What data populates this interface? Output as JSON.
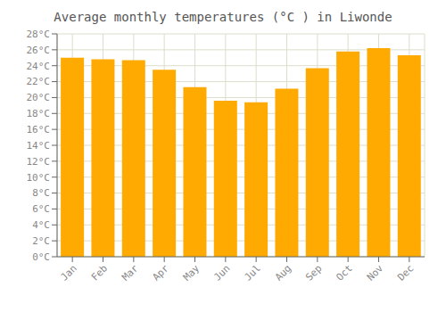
{
  "chart_data": {
    "type": "bar",
    "title": "Average monthly temperatures (°C ) in Liwonde",
    "categories": [
      "Jan",
      "Feb",
      "Mar",
      "Apr",
      "May",
      "Jun",
      "Jul",
      "Aug",
      "Sep",
      "Oct",
      "Nov",
      "Dec"
    ],
    "values": [
      25.0,
      24.8,
      24.7,
      23.5,
      21.3,
      19.6,
      19.4,
      21.1,
      23.7,
      25.8,
      26.2,
      25.3
    ],
    "color": "#FFAA00",
    "ylim": [
      0,
      28
    ],
    "yticks": [
      {
        "value": 0,
        "label": "0°C"
      },
      {
        "value": 2,
        "label": "2°C"
      },
      {
        "value": 4,
        "label": "4°C"
      },
      {
        "value": 6,
        "label": "6°C"
      },
      {
        "value": 8,
        "label": "8°C"
      },
      {
        "value": 10,
        "label": "10°C"
      },
      {
        "value": 12,
        "label": "12°C"
      },
      {
        "value": 14,
        "label": "14°C"
      },
      {
        "value": 16,
        "label": "16°C"
      },
      {
        "value": 18,
        "label": "18°C"
      },
      {
        "value": 20,
        "label": "20°C"
      },
      {
        "value": 22,
        "label": "22°C"
      },
      {
        "value": 24,
        "label": "24°C"
      },
      {
        "value": 26,
        "label": "26°C"
      },
      {
        "value": 28,
        "label": "28°C"
      }
    ],
    "grid": true
  }
}
